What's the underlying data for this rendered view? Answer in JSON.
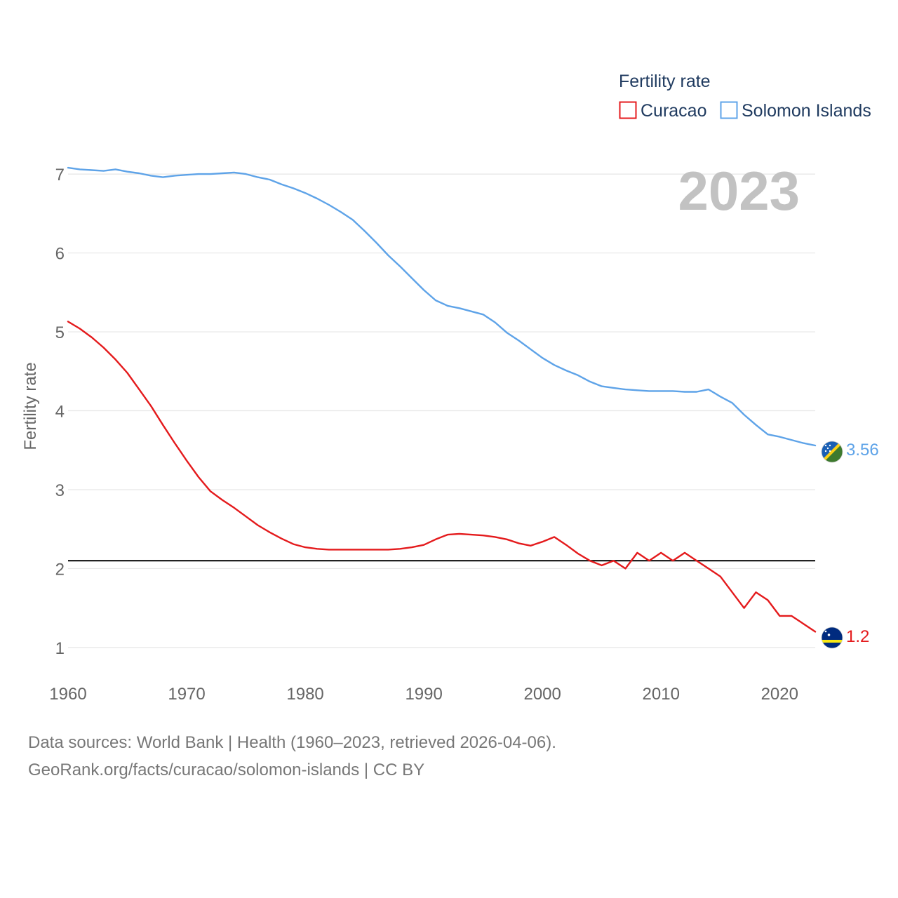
{
  "chart_data": {
    "type": "line",
    "legend_title": "Fertility rate",
    "year_label": "2023",
    "ylabel": "Fertility rate",
    "xlabel": "",
    "xlim": [
      1960,
      2023
    ],
    "ylim": [
      0.75,
      7.25
    ],
    "x_ticks": [
      1960,
      1970,
      1980,
      1990,
      2000,
      2010,
      2020
    ],
    "y_ticks": [
      1,
      2,
      3,
      4,
      5,
      6,
      7
    ],
    "reference_line": 2.1,
    "legend_position": "top-right",
    "x": [
      1960,
      1961,
      1962,
      1963,
      1964,
      1965,
      1966,
      1967,
      1968,
      1969,
      1970,
      1971,
      1972,
      1973,
      1974,
      1975,
      1976,
      1977,
      1978,
      1979,
      1980,
      1981,
      1982,
      1983,
      1984,
      1985,
      1986,
      1987,
      1988,
      1989,
      1990,
      1991,
      1992,
      1993,
      1994,
      1995,
      1996,
      1997,
      1998,
      1999,
      2000,
      2001,
      2002,
      2003,
      2004,
      2005,
      2006,
      2007,
      2008,
      2009,
      2010,
      2011,
      2012,
      2013,
      2014,
      2015,
      2016,
      2017,
      2018,
      2019,
      2020,
      2021,
      2022,
      2023
    ],
    "series": [
      {
        "name": "Curacao",
        "color": "#e41a1c",
        "end_label": "1.2",
        "values": [
          5.13,
          5.04,
          4.93,
          4.8,
          4.65,
          4.48,
          4.27,
          4.06,
          3.82,
          3.59,
          3.37,
          3.16,
          2.98,
          2.87,
          2.77,
          2.66,
          2.55,
          2.46,
          2.38,
          2.31,
          2.27,
          2.25,
          2.24,
          2.24,
          2.24,
          2.24,
          2.24,
          2.24,
          2.25,
          2.27,
          2.3,
          2.37,
          2.43,
          2.44,
          2.43,
          2.42,
          2.4,
          2.37,
          2.32,
          2.29,
          2.34,
          2.4,
          2.3,
          2.19,
          2.1,
          2.04,
          2.1,
          2.0,
          2.2,
          2.1,
          2.2,
          2.1,
          2.2,
          2.1,
          2.0,
          1.9,
          1.7,
          1.5,
          1.7,
          1.6,
          1.4,
          1.4,
          1.3,
          1.2
        ]
      },
      {
        "name": "Solomon Islands",
        "color": "#5ea3e8",
        "end_label": "3.56",
        "values": [
          7.08,
          7.06,
          7.05,
          7.04,
          7.06,
          7.03,
          7.01,
          6.98,
          6.96,
          6.98,
          6.99,
          7.0,
          7.0,
          7.01,
          7.02,
          7.0,
          6.96,
          6.93,
          6.87,
          6.82,
          6.76,
          6.69,
          6.61,
          6.52,
          6.42,
          6.28,
          6.13,
          5.97,
          5.83,
          5.68,
          5.53,
          5.4,
          5.33,
          5.3,
          5.26,
          5.22,
          5.12,
          4.99,
          4.89,
          4.78,
          4.67,
          4.58,
          4.51,
          4.45,
          4.37,
          4.31,
          4.29,
          4.27,
          4.26,
          4.25,
          4.25,
          4.25,
          4.24,
          4.24,
          4.27,
          4.18,
          4.1,
          3.95,
          3.82,
          3.7,
          3.67,
          3.63,
          3.59,
          3.56
        ]
      }
    ]
  },
  "footer": {
    "line1": "Data sources: World Bank | Health (1960–2023, retrieved 2026-04-06).",
    "line2": "GeoRank.org/facts/curacao/solomon-islands | CC BY"
  }
}
